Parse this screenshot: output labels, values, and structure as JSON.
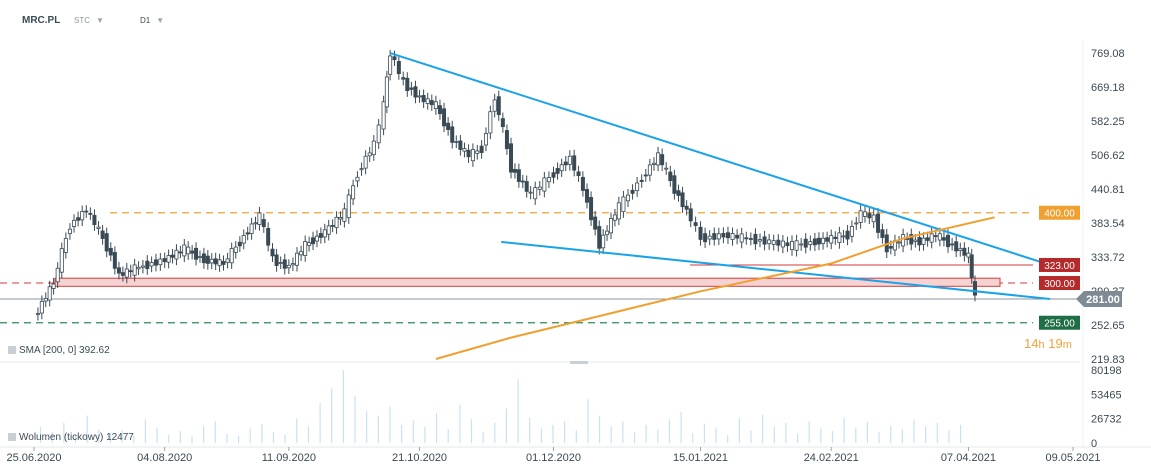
{
  "header": {
    "symbol": "MRC.PL",
    "price_type": "STC",
    "interval": "D1"
  },
  "colors": {
    "trendline": "#1aa3e8",
    "sma": "#f0a030",
    "resistance": "#f0a030",
    "support_red": "#d63a3a",
    "support_green": "#2e8b57",
    "current_price": "#8a96a0",
    "candle_up": "#ffffff",
    "candle_down": "#3a4a55",
    "volume": "#c7e3f3"
  },
  "chart_data": {
    "type": "candlestick",
    "title": "",
    "xlabel": "",
    "ylabel": "",
    "x_tick_labels": [
      "25.06.2020",
      "04.08.2020",
      "11.09.2020",
      "21.10.2020",
      "01.12.2020",
      "15.01.2021",
      "24.02.2021",
      "07.04.2021",
      "09.05.2021"
    ],
    "y_tick_labels": [
      "769.08",
      "669.18",
      "582.25",
      "506.62",
      "440.81",
      "383.54",
      "333.72",
      "290.37",
      "252.65",
      "219.83"
    ],
    "y_scale": "log",
    "ylim": [
      219.83,
      769.08
    ],
    "price_series": [
      {
        "date": "2020-06-25",
        "value": 260
      },
      {
        "date": "2020-07-01",
        "value": 300
      },
      {
        "date": "2020-07-06",
        "value": 380
      },
      {
        "date": "2020-07-11",
        "value": 405
      },
      {
        "date": "2020-07-16",
        "value": 360
      },
      {
        "date": "2020-07-21",
        "value": 310
      },
      {
        "date": "2020-07-27",
        "value": 320
      },
      {
        "date": "2020-08-04",
        "value": 330
      },
      {
        "date": "2020-08-10",
        "value": 345
      },
      {
        "date": "2020-08-16",
        "value": 330
      },
      {
        "date": "2020-08-22",
        "value": 325
      },
      {
        "date": "2020-08-27",
        "value": 355
      },
      {
        "date": "2020-09-02",
        "value": 395
      },
      {
        "date": "2020-09-06",
        "value": 330
      },
      {
        "date": "2020-09-11",
        "value": 320
      },
      {
        "date": "2020-09-16",
        "value": 350
      },
      {
        "date": "2020-09-22",
        "value": 370
      },
      {
        "date": "2020-09-28",
        "value": 400
      },
      {
        "date": "2020-10-02",
        "value": 470
      },
      {
        "date": "2020-10-07",
        "value": 530
      },
      {
        "date": "2020-10-10",
        "value": 620
      },
      {
        "date": "2020-10-12",
        "value": 769
      },
      {
        "date": "2020-10-16",
        "value": 680
      },
      {
        "date": "2020-10-21",
        "value": 640
      },
      {
        "date": "2020-10-26",
        "value": 620
      },
      {
        "date": "2020-10-31",
        "value": 540
      },
      {
        "date": "2020-11-05",
        "value": 505
      },
      {
        "date": "2020-11-09",
        "value": 520
      },
      {
        "date": "2020-11-13",
        "value": 640
      },
      {
        "date": "2020-11-18",
        "value": 480
      },
      {
        "date": "2020-11-24",
        "value": 430
      },
      {
        "date": "2020-12-01",
        "value": 470
      },
      {
        "date": "2020-12-06",
        "value": 500
      },
      {
        "date": "2020-12-10",
        "value": 440
      },
      {
        "date": "2020-12-15",
        "value": 350
      },
      {
        "date": "2020-12-21",
        "value": 410
      },
      {
        "date": "2020-12-28",
        "value": 460
      },
      {
        "date": "2021-01-02",
        "value": 505
      },
      {
        "date": "2021-01-07",
        "value": 440
      },
      {
        "date": "2021-01-12",
        "value": 390
      },
      {
        "date": "2021-01-15",
        "value": 360
      },
      {
        "date": "2021-01-22",
        "value": 365
      },
      {
        "date": "2021-01-29",
        "value": 360
      },
      {
        "date": "2021-02-05",
        "value": 355
      },
      {
        "date": "2021-02-12",
        "value": 350
      },
      {
        "date": "2021-02-19",
        "value": 355
      },
      {
        "date": "2021-02-24",
        "value": 360
      },
      {
        "date": "2021-03-01",
        "value": 365
      },
      {
        "date": "2021-03-05",
        "value": 400
      },
      {
        "date": "2021-03-09",
        "value": 390
      },
      {
        "date": "2021-03-13",
        "value": 345
      },
      {
        "date": "2021-03-18",
        "value": 360
      },
      {
        "date": "2021-03-23",
        "value": 355
      },
      {
        "date": "2021-03-28",
        "value": 365
      },
      {
        "date": "2021-04-02",
        "value": 350
      },
      {
        "date": "2021-04-07",
        "value": 335
      },
      {
        "date": "2021-04-09",
        "value": 281
      }
    ],
    "sma": {
      "label": "SMA [200, 0]",
      "value_text": "392.62",
      "points": [
        {
          "date": "2020-10-26",
          "value": 219.83
        },
        {
          "date": "2020-11-18",
          "value": 240
        },
        {
          "date": "2020-12-15",
          "value": 262
        },
        {
          "date": "2021-01-15",
          "value": 290
        },
        {
          "date": "2021-02-24",
          "value": 325
        },
        {
          "date": "2021-03-18",
          "value": 360
        },
        {
          "date": "2021-04-15",
          "value": 392.62
        }
      ]
    },
    "volume": {
      "label": "Wolumen (tickowy)",
      "value_text": "12477",
      "tick_labels": [
        "80198",
        "53465",
        "26732",
        "0"
      ],
      "ylim": [
        0,
        80198
      ],
      "values": [
        18000,
        12000,
        22000,
        9000,
        30000,
        15000,
        11000,
        14000,
        8000,
        26000,
        17000,
        9000,
        13000,
        7000,
        19000,
        24000,
        10000,
        8000,
        16000,
        21000,
        12000,
        9000,
        27000,
        18000,
        44000,
        60000,
        80198,
        52000,
        35000,
        30000,
        40000,
        20000,
        25000,
        18000,
        33000,
        15000,
        42000,
        26000,
        12000,
        22000,
        38000,
        70000,
        28000,
        16000,
        20000,
        24000,
        14000,
        48000,
        30000,
        18000,
        24000,
        12000,
        20000,
        15000,
        26000,
        34000,
        11000,
        21000,
        17000,
        9000,
        27000,
        14000,
        31000,
        18000,
        22000,
        10000,
        24000,
        16000,
        13000,
        28000,
        17000,
        23000,
        12000,
        19000,
        15000,
        26000,
        18000,
        22000,
        14000,
        20000
      ]
    },
    "trendlines": [
      {
        "name": "upper-trendline",
        "from": {
          "date": "2020-10-12",
          "value": 769
        },
        "to": {
          "date": "2021-05-02",
          "value": 323
        }
      },
      {
        "name": "lower-trendline",
        "from": {
          "date": "2020-11-15",
          "value": 355
        },
        "to": {
          "date": "2021-05-02",
          "value": 281
        }
      }
    ],
    "levels": [
      {
        "name": "resistance",
        "value": 400,
        "label": "400.00"
      },
      {
        "name": "support-323",
        "value": 323,
        "label": "323.00"
      },
      {
        "name": "support-300",
        "value": 300,
        "label": "300.00"
      },
      {
        "name": "support-255",
        "value": 255,
        "label": "255.00"
      }
    ],
    "current_price": {
      "value": 281,
      "label": "281.00"
    }
  },
  "countdown": {
    "hours": "14",
    "h_unit": "h",
    "minutes": "19",
    "m_unit": "m"
  }
}
